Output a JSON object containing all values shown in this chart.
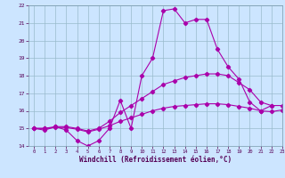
{
  "title": "",
  "xlabel": "Windchill (Refroidissement éolien,°C)",
  "background_color": "#cce5ff",
  "grid_color": "#99bbcc",
  "line_color": "#aa00aa",
  "x": [
    0,
    1,
    2,
    3,
    4,
    5,
    6,
    7,
    8,
    9,
    10,
    11,
    12,
    13,
    14,
    15,
    16,
    17,
    18,
    19,
    20,
    21,
    22,
    23
  ],
  "line1": [
    15.0,
    14.9,
    15.1,
    14.9,
    14.3,
    14.0,
    14.3,
    15.0,
    16.6,
    15.0,
    18.0,
    19.0,
    21.7,
    21.8,
    21.0,
    21.2,
    21.2,
    19.5,
    18.5,
    17.8,
    16.5,
    16.0,
    16.3,
    null
  ],
  "line2": [
    15.0,
    15.0,
    15.1,
    15.1,
    15.0,
    14.85,
    15.0,
    15.4,
    15.9,
    16.3,
    16.7,
    17.1,
    17.5,
    17.7,
    17.9,
    18.0,
    18.1,
    18.1,
    18.0,
    17.6,
    17.2,
    16.5,
    16.3,
    16.3
  ],
  "line3": [
    15.0,
    15.0,
    15.05,
    15.05,
    14.95,
    14.8,
    14.95,
    15.15,
    15.4,
    15.6,
    15.8,
    16.0,
    16.15,
    16.25,
    16.3,
    16.35,
    16.4,
    16.4,
    16.35,
    16.25,
    16.15,
    16.0,
    15.95,
    16.05
  ],
  "ylim": [
    14.0,
    22.0
  ],
  "xlim": [
    -0.5,
    23
  ],
  "yticks": [
    14,
    15,
    16,
    17,
    18,
    19,
    20,
    21,
    22
  ],
  "xticks": [
    0,
    1,
    2,
    3,
    4,
    5,
    6,
    7,
    8,
    9,
    10,
    11,
    12,
    13,
    14,
    15,
    16,
    17,
    18,
    19,
    20,
    21,
    22,
    23
  ],
  "tick_fontsize": 4.5,
  "xlabel_fontsize": 5.5
}
